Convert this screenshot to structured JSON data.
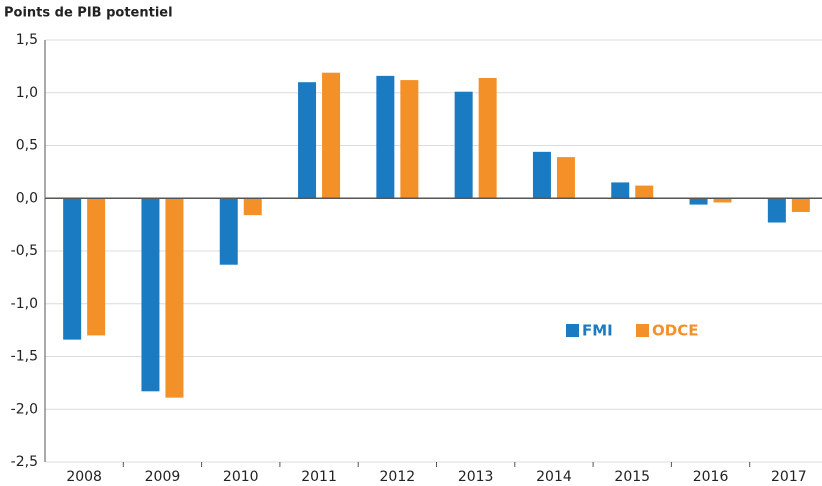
{
  "chart_data": {
    "type": "bar",
    "title": "Points de PIB potentiel",
    "categories": [
      "2008",
      "2009",
      "2010",
      "2011",
      "2012",
      "2013",
      "2014",
      "2015",
      "2016",
      "2017"
    ],
    "series": [
      {
        "name": "FMI",
        "color": "#1b7bc2",
        "values": [
          -1.34,
          -1.83,
          -0.63,
          1.1,
          1.16,
          1.01,
          0.44,
          0.15,
          -0.06,
          -0.23
        ]
      },
      {
        "name": "ODCE",
        "color": "#f39128",
        "values": [
          -1.3,
          -1.89,
          -0.16,
          1.19,
          1.12,
          1.14,
          0.39,
          0.12,
          -0.04,
          -0.13
        ]
      }
    ],
    "ylim": [
      -2.5,
      1.5
    ],
    "yticks": [
      {
        "value": 1.5,
        "label": "1,5"
      },
      {
        "value": 1.0,
        "label": "1,0"
      },
      {
        "value": 0.5,
        "label": "0,5"
      },
      {
        "value": 0.0,
        "label": "0,0"
      },
      {
        "value": -0.5,
        "label": "-0,5"
      },
      {
        "value": -1.0,
        "label": "-1,0"
      },
      {
        "value": -1.5,
        "label": "-1,5"
      },
      {
        "value": -2.0,
        "label": "-2,0"
      },
      {
        "value": -2.5,
        "label": "-2,5"
      }
    ],
    "grid": true
  }
}
